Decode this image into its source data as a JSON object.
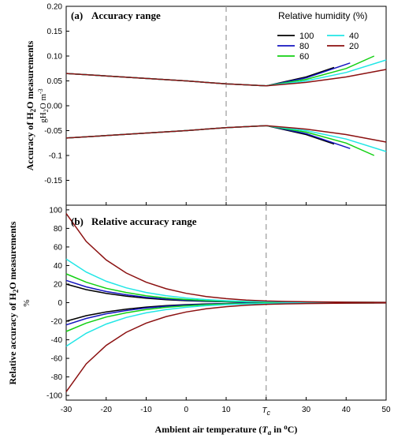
{
  "chart_data": [
    {
      "type": "line",
      "panel_label": "(a)",
      "title": "Accuracy range",
      "ylabel": "Accuracy of H2O measurements",
      "yunit": "gH2O m-3",
      "xlabel": "",
      "xlim": [
        -30,
        50
      ],
      "ylim": [
        -0.2,
        0.2
      ],
      "yticks": [
        "0.20",
        "0.15",
        "0.10",
        "0.05",
        "0.00",
        "-0.05",
        "-0.1",
        "-0.15"
      ],
      "yticks_values": [
        0.2,
        0.15,
        0.1,
        0.05,
        0.0,
        -0.05,
        -0.1,
        -0.15
      ],
      "grid": false,
      "vertical_marker": 10,
      "legend": {
        "title": "Relative humidity (%)",
        "placement": "top-right"
      },
      "series": [
        {
          "name": "100",
          "color": "#000000",
          "upper_x": [
            -30,
            -20,
            -10,
            0,
            10,
            20,
            30,
            37
          ],
          "upper_y": [
            0.065,
            0.06,
            0.055,
            0.05,
            0.044,
            0.04,
            0.058,
            0.077
          ],
          "lower_y": [
            -0.065,
            -0.06,
            -0.055,
            -0.05,
            -0.044,
            -0.04,
            -0.058,
            -0.077
          ]
        },
        {
          "name": "80",
          "color": "#1515c0",
          "upper_x": [
            -30,
            -20,
            -10,
            0,
            10,
            20,
            30,
            41
          ],
          "upper_y": [
            0.065,
            0.06,
            0.055,
            0.05,
            0.044,
            0.04,
            0.056,
            0.086
          ],
          "lower_y": [
            -0.065,
            -0.06,
            -0.055,
            -0.05,
            -0.044,
            -0.04,
            -0.056,
            -0.086
          ]
        },
        {
          "name": "60",
          "color": "#12d012",
          "upper_x": [
            -30,
            -20,
            -10,
            0,
            10,
            20,
            30,
            40,
            47
          ],
          "upper_y": [
            0.065,
            0.06,
            0.055,
            0.05,
            0.044,
            0.04,
            0.053,
            0.075,
            0.1
          ],
          "lower_y": [
            -0.065,
            -0.06,
            -0.055,
            -0.05,
            -0.044,
            -0.04,
            -0.053,
            -0.075,
            -0.1
          ]
        },
        {
          "name": "40",
          "color": "#22e6e6",
          "upper_x": [
            -30,
            -20,
            -10,
            0,
            10,
            20,
            30,
            40,
            50
          ],
          "upper_y": [
            0.065,
            0.06,
            0.055,
            0.05,
            0.044,
            0.04,
            0.05,
            0.067,
            0.092
          ],
          "lower_y": [
            -0.065,
            -0.06,
            -0.055,
            -0.05,
            -0.044,
            -0.04,
            -0.05,
            -0.067,
            -0.092
          ]
        },
        {
          "name": "20",
          "color": "#8b1010",
          "upper_x": [
            -30,
            -20,
            -10,
            0,
            10,
            20,
            30,
            40,
            50
          ],
          "upper_y": [
            0.065,
            0.06,
            0.055,
            0.05,
            0.044,
            0.04,
            0.047,
            0.058,
            0.073
          ],
          "lower_y": [
            -0.065,
            -0.06,
            -0.055,
            -0.05,
            -0.044,
            -0.04,
            -0.047,
            -0.058,
            -0.073
          ]
        }
      ]
    },
    {
      "type": "line",
      "panel_label": "(b)",
      "title": "Relative accuracy range",
      "ylabel": "Relative accuracy of H2O measurements",
      "yunit": "%",
      "xlabel": "Ambient air temperature (Ta in oC)",
      "xlim": [
        -30,
        50
      ],
      "ylim": [
        -105,
        105
      ],
      "xticks": [
        "-30",
        "-20",
        "-10",
        "0",
        "10",
        "Tc",
        "30",
        "40",
        "50"
      ],
      "xticks_values": [
        -30,
        -20,
        -10,
        0,
        10,
        20,
        30,
        40,
        50
      ],
      "yticks": [
        "100",
        "80",
        "60",
        "40",
        "20",
        "0",
        "-20",
        "-40",
        "-60",
        "-80",
        "-100"
      ],
      "yticks_values": [
        100,
        80,
        60,
        40,
        20,
        0,
        -20,
        -40,
        -60,
        -80,
        -100
      ],
      "grid": false,
      "vertical_marker": 20,
      "series": [
        {
          "name": "100",
          "color": "#000000",
          "x": [
            -30,
            -25,
            -20,
            -15,
            -10,
            -5,
            0,
            5,
            10,
            15,
            20,
            25,
            30,
            37
          ],
          "upper_y": [
            20,
            14,
            10,
            7,
            4.8,
            3.2,
            2.1,
            1.4,
            0.9,
            0.6,
            0.4,
            0.3,
            0.3,
            0.3
          ],
          "lower_y": [
            -20,
            -14,
            -10,
            -7,
            -4.8,
            -3.2,
            -2.1,
            -1.4,
            -0.9,
            -0.6,
            -0.4,
            -0.3,
            -0.3,
            -0.3
          ]
        },
        {
          "name": "80",
          "color": "#1515c0",
          "x": [
            -30,
            -25,
            -20,
            -15,
            -10,
            -5,
            0,
            5,
            10,
            15,
            20,
            25,
            30,
            41
          ],
          "upper_y": [
            24,
            17,
            12,
            8.5,
            5.8,
            3.9,
            2.6,
            1.7,
            1.1,
            0.7,
            0.5,
            0.4,
            0.3,
            0.3
          ],
          "lower_y": [
            -24,
            -17,
            -12,
            -8.5,
            -5.8,
            -3.9,
            -2.6,
            -1.7,
            -1.1,
            -0.7,
            -0.5,
            -0.4,
            -0.3,
            -0.3
          ]
        },
        {
          "name": "60",
          "color": "#12d012",
          "x": [
            -30,
            -25,
            -20,
            -15,
            -10,
            -5,
            0,
            5,
            10,
            15,
            20,
            25,
            30,
            40,
            47
          ],
          "upper_y": [
            31,
            22,
            15.5,
            11,
            7.5,
            5,
            3.4,
            2.2,
            1.4,
            0.9,
            0.6,
            0.5,
            0.4,
            0.3,
            0.3
          ],
          "lower_y": [
            -31,
            -22,
            -15.5,
            -11,
            -7.5,
            -5,
            -3.4,
            -2.2,
            -1.4,
            -0.9,
            -0.6,
            -0.5,
            -0.4,
            -0.3,
            -0.3
          ]
        },
        {
          "name": "40",
          "color": "#22e6e6",
          "x": [
            -30,
            -25,
            -20,
            -15,
            -10,
            -5,
            0,
            5,
            10,
            15,
            20,
            25,
            30,
            40,
            50
          ],
          "upper_y": [
            47,
            33,
            23,
            16,
            11,
            7.4,
            5,
            3.3,
            2.1,
            1.4,
            0.9,
            0.7,
            0.5,
            0.4,
            0.3
          ],
          "lower_y": [
            -47,
            -33,
            -23,
            -16,
            -11,
            -7.4,
            -5,
            -3.3,
            -2.1,
            -1.4,
            -0.9,
            -0.7,
            -0.5,
            -0.4,
            -0.3
          ]
        },
        {
          "name": "20",
          "color": "#8b1010",
          "x": [
            -30,
            -25,
            -20,
            -15,
            -10,
            -5,
            0,
            5,
            10,
            15,
            20,
            25,
            30,
            40,
            50
          ],
          "upper_y": [
            96,
            66,
            46,
            32,
            22,
            15,
            10,
            6.6,
            4.3,
            2.8,
            1.8,
            1.3,
            0.9,
            0.5,
            0.3
          ],
          "lower_y": [
            -96,
            -66,
            -46,
            -32,
            -22,
            -15,
            -10,
            -6.6,
            -4.3,
            -2.8,
            -1.8,
            -1.3,
            -0.9,
            -0.5,
            -0.3
          ]
        }
      ]
    }
  ]
}
